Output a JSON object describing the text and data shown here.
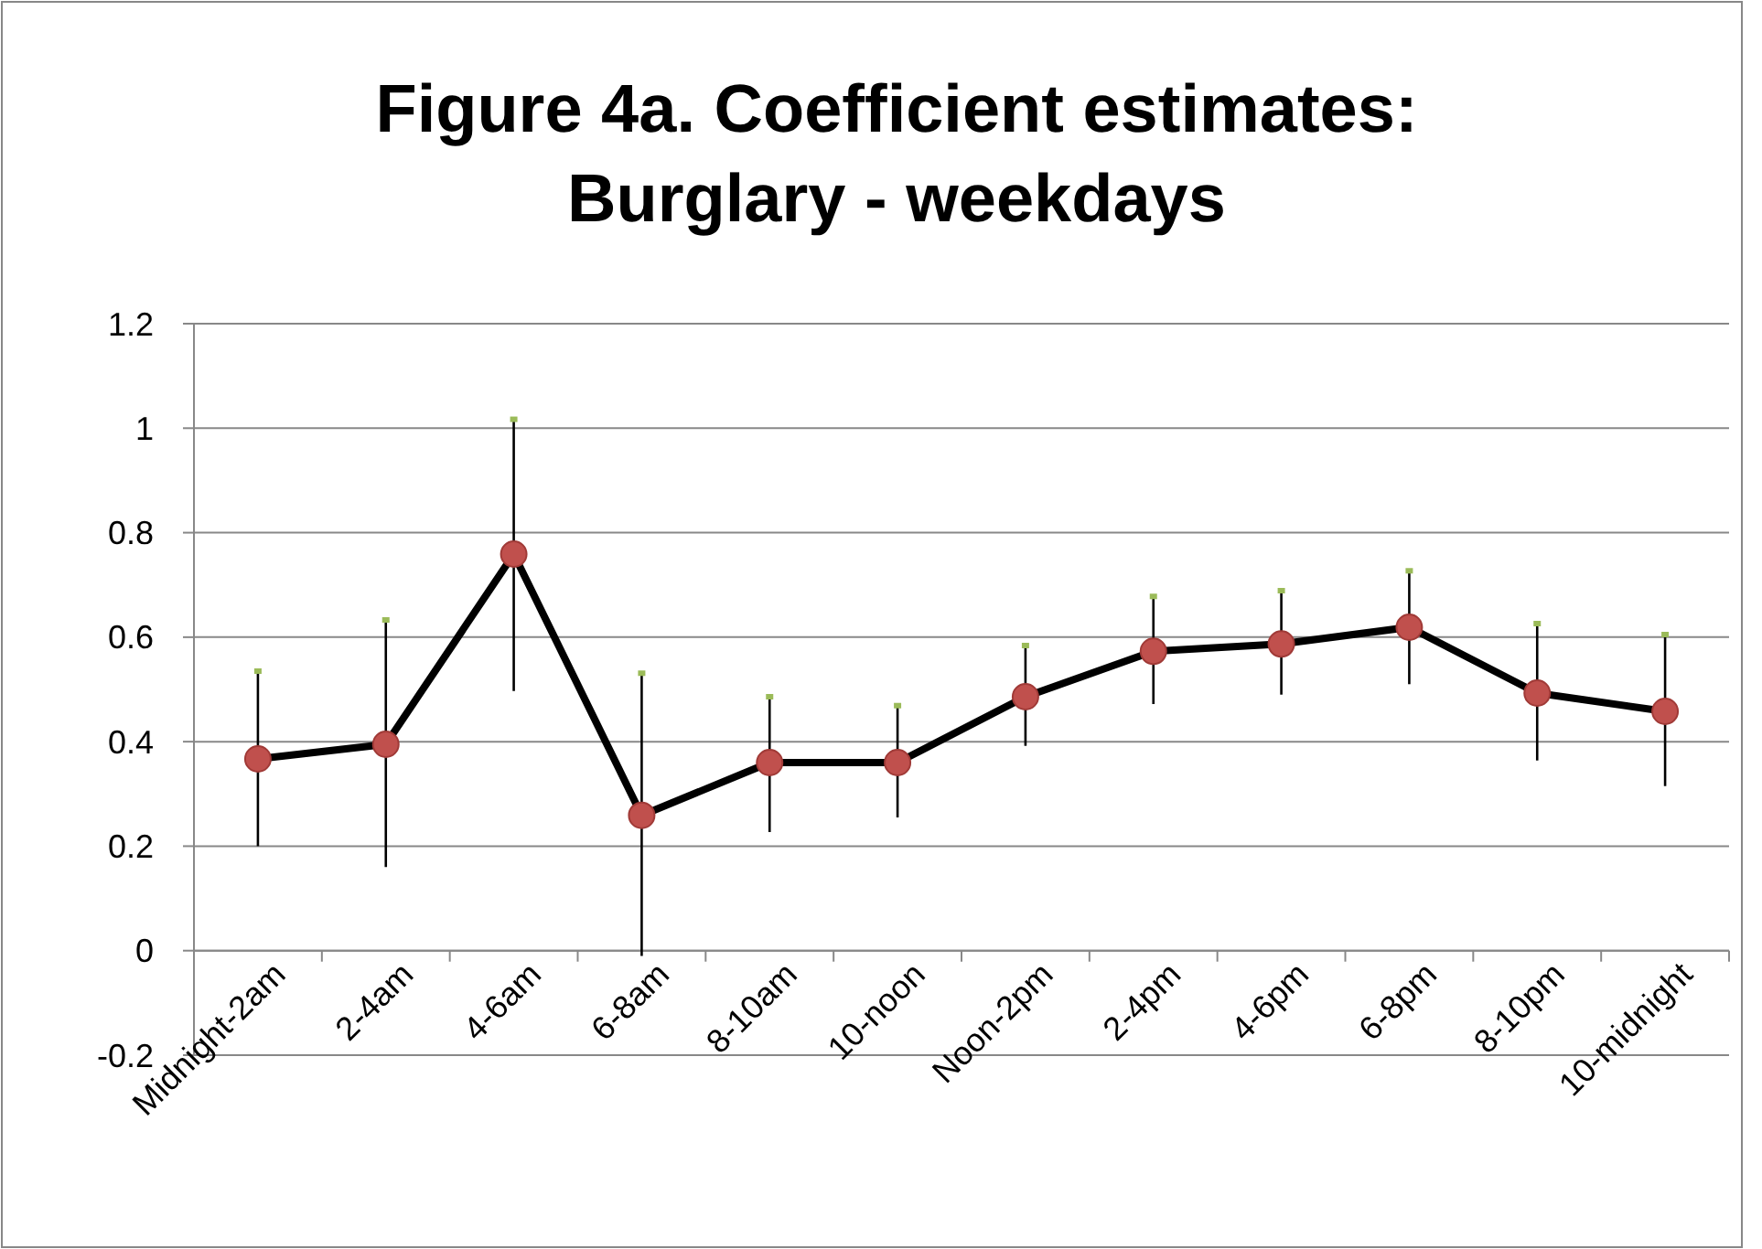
{
  "chart_data": {
    "type": "line",
    "title": "Figure 4a. Coefficient estimates:\nBurglary - weekdays",
    "categories": [
      "Midnight-2am",
      "2-4am",
      "4-6am",
      "6-8am",
      "8-10am",
      "10-noon",
      "Noon-2pm",
      "2-4pm",
      "4-6pm",
      "6-8pm",
      "8-10pm",
      "10-midnight"
    ],
    "series": [
      {
        "color": "#000000",
        "colors": [
          "#c0504d",
          "#c0504d",
          "#c0504d",
          "#c0504d",
          "#c0504d",
          "#c0504d",
          "#c0504d",
          "#c0504d",
          "#c0504d",
          "#c0504d",
          "#c0504d",
          "#c0504d"
        ],
        "values": [
          0.367,
          0.395,
          0.759,
          0.259,
          0.36,
          0.36,
          0.486,
          0.573,
          0.587,
          0.619,
          0.493,
          0.458
        ],
        "errors": [
          [
            0.2,
            0.535
          ],
          [
            0.16,
            0.633
          ],
          [
            0.497,
            1.017
          ],
          [
            -0.01,
            0.531
          ],
          [
            0.227,
            0.486
          ],
          [
            0.255,
            0.469
          ],
          [
            0.392,
            0.584
          ],
          [
            0.472,
            0.678
          ],
          [
            0.49,
            0.689
          ],
          [
            0.51,
            0.727
          ],
          [
            0.364,
            0.626
          ],
          [
            0.315,
            0.605
          ]
        ]
      }
    ],
    "ylim": [
      -0.2,
      1.2
    ],
    "yticks": [
      -0.2,
      0,
      0.2,
      0.4,
      0.6,
      0.8,
      1,
      1.2
    ],
    "grid": "y",
    "marker": "circle",
    "line_style": "solid"
  }
}
